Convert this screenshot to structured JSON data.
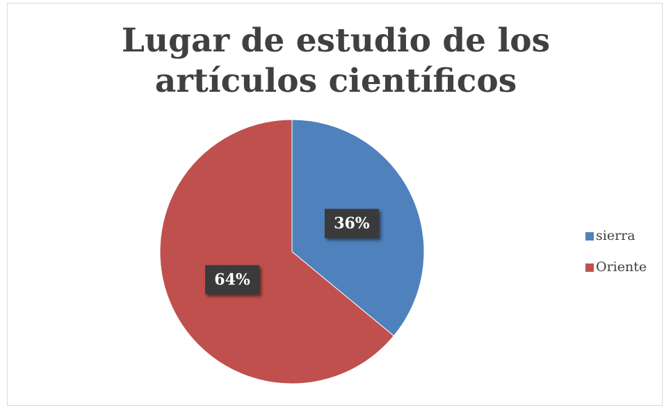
{
  "chart_data": {
    "type": "pie",
    "title": "Lugar de estudio de los artículos científicos",
    "categories": [
      "sierra",
      "Oriente"
    ],
    "values": [
      36,
      64
    ],
    "value_labels": [
      "36%",
      "64%"
    ],
    "colors": [
      "#4f81bd",
      "#c0504d"
    ],
    "legend": "right"
  }
}
